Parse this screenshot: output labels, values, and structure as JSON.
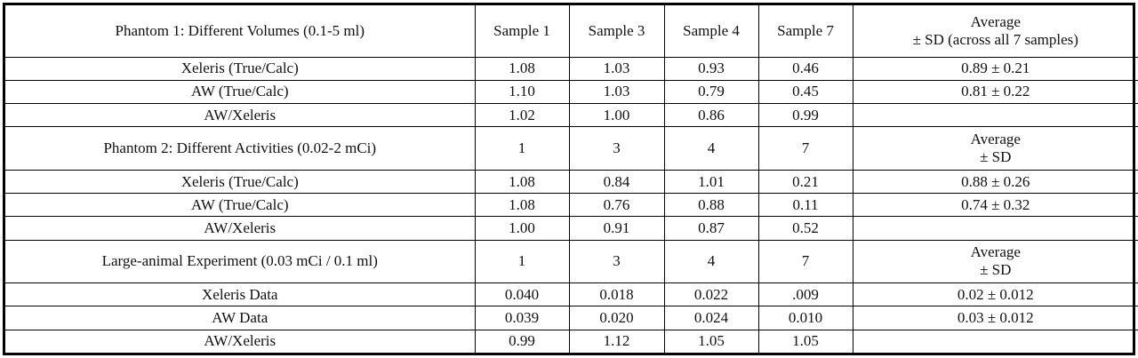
{
  "sections": [
    {
      "header": {
        "label": "Phantom 1: Different Volumes (0.1-5 ml)",
        "samples": [
          "Sample 1",
          "Sample 3",
          "Sample 4",
          "Sample 7"
        ],
        "avg_line1": "Average",
        "avg_line2": "± SD (across all 7 samples)"
      },
      "rows": [
        {
          "label": "Xeleris (True/Calc)",
          "values": [
            "1.08",
            "1.03",
            "0.93",
            "0.46"
          ],
          "avg": "0.89 ± 0.21"
        },
        {
          "label": "AW (True/Calc)",
          "values": [
            "1.10",
            "1.03",
            "0.79",
            "0.45"
          ],
          "avg": "0.81 ± 0.22"
        },
        {
          "label": "AW/Xeleris",
          "values": [
            "1.02",
            "1.00",
            "0.86",
            "0.99"
          ],
          "avg": ""
        }
      ]
    },
    {
      "header": {
        "label": "Phantom 2: Different Activities (0.02-2 mCi)",
        "samples": [
          "1",
          "3",
          "4",
          "7"
        ],
        "avg_line1": "Average",
        "avg_line2": "± SD"
      },
      "rows": [
        {
          "label": "Xeleris (True/Calc)",
          "values": [
            "1.08",
            "0.84",
            "1.01",
            "0.21"
          ],
          "avg": "0.88 ± 0.26"
        },
        {
          "label": "AW (True/Calc)",
          "values": [
            "1.08",
            "0.76",
            "0.88",
            "0.11"
          ],
          "avg": "0.74 ± 0.32"
        },
        {
          "label": "AW/Xeleris",
          "values": [
            "1.00",
            "0.91",
            "0.87",
            "0.52"
          ],
          "avg": ""
        }
      ]
    },
    {
      "header": {
        "label": "Large-animal Experiment (0.03 mCi / 0.1 ml)",
        "samples": [
          "1",
          "3",
          "4",
          "7"
        ],
        "avg_line1": "Average",
        "avg_line2": "± SD"
      },
      "rows": [
        {
          "label": "Xeleris Data",
          "values": [
            "0.040",
            "0.018",
            "0.022",
            ".009"
          ],
          "avg": "0.02 ± 0.012"
        },
        {
          "label": "AW Data",
          "values": [
            "0.039",
            "0.020",
            "0.024",
            "0.010"
          ],
          "avg": "0.03 ± 0.012"
        },
        {
          "label": "AW/Xeleris",
          "values": [
            "0.99",
            "1.12",
            "1.05",
            "1.05"
          ],
          "avg": ""
        }
      ]
    }
  ]
}
